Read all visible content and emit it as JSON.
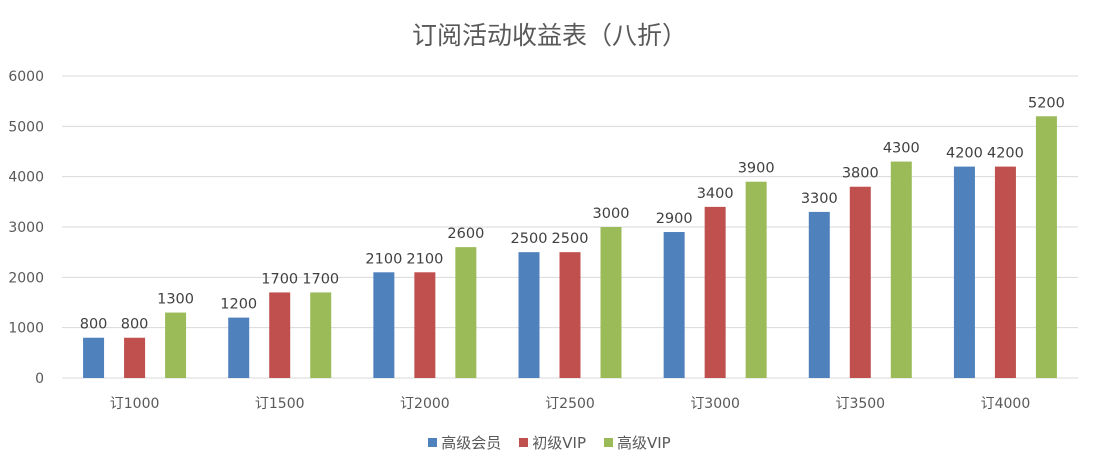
{
  "chart_data": {
    "type": "bar",
    "title": "订阅活动收益表（八折）",
    "categories": [
      "订1000",
      "订1500",
      "订2000",
      "订2500",
      "订3000",
      "订3500",
      "订4000"
    ],
    "series": [
      {
        "name": "高级会员",
        "color": "#4F81BD",
        "values": [
          800,
          1200,
          2100,
          2500,
          2900,
          3300,
          4200
        ]
      },
      {
        "name": "初级VIP",
        "color": "#C0504D",
        "values": [
          800,
          1700,
          2100,
          2500,
          3400,
          3800,
          4200
        ]
      },
      {
        "name": "高级VIP",
        "color": "#9BBB59",
        "values": [
          1300,
          1700,
          2600,
          3000,
          3900,
          4300,
          5200
        ]
      }
    ],
    "ylim": [
      0,
      6000
    ],
    "yticks": [
      0,
      1000,
      2000,
      3000,
      4000,
      5000,
      6000
    ],
    "grid": true,
    "data_labels": true,
    "legend": "bottom",
    "xlabel": "",
    "ylabel": ""
  }
}
